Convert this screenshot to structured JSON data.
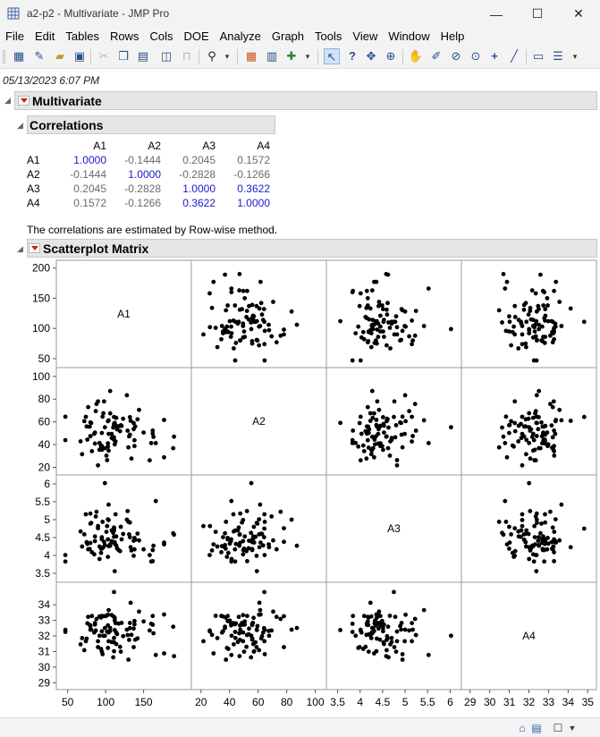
{
  "window": {
    "title": "a2-p2 - Multivariate - JMP Pro",
    "minimize_glyph": "—",
    "maximize_glyph": "☐",
    "close_glyph": "✕"
  },
  "menu": [
    "File",
    "Edit",
    "Tables",
    "Rows",
    "Cols",
    "DOE",
    "Analyze",
    "Graph",
    "Tools",
    "View",
    "Window",
    "Help"
  ],
  "toolbar_icons": [
    "new-data-table-icon",
    "new-script-icon",
    "open-icon",
    "save-icon",
    "cut-icon",
    "copy-icon",
    "paste-icon",
    "journal-icon",
    "lock-icon",
    "search-icon",
    "data-table-icon",
    "column-icon",
    "add-rows-icon",
    "arrow-tool-icon",
    "help-tool-icon",
    "selection-tool-icon",
    "crosshair-tool-icon",
    "grabber-tool-icon",
    "brush-tool-icon",
    "lasso-tool-icon",
    "magnifier-tool-icon",
    "crosshair-plus-icon",
    "line-tool-icon",
    "annotate-tool-icon",
    "more-tools-icon"
  ],
  "report": {
    "timestamp": "05/13/2023 6:07 PM",
    "multivariate_title": "Multivariate",
    "correlations_title": "Correlations",
    "columns": [
      "A1",
      "A2",
      "A3",
      "A4"
    ],
    "rows": [
      {
        "label": "A1",
        "values": [
          "1.0000",
          "-0.1444",
          "0.2045",
          "0.1572"
        ]
      },
      {
        "label": "A2",
        "values": [
          "-0.1444",
          "1.0000",
          "-0.2828",
          "-0.1266"
        ]
      },
      {
        "label": "A3",
        "values": [
          "0.2045",
          "-0.2828",
          "1.0000",
          "0.3622"
        ]
      },
      {
        "label": "A4",
        "values": [
          "0.1572",
          "-0.1266",
          "0.3622",
          "1.0000"
        ]
      }
    ],
    "correlation_note": "The correlations are estimated by Row-wise method.",
    "scatter_title": "Scatterplot Matrix"
  },
  "chart_data": {
    "type": "scatter",
    "variables": [
      "A1",
      "A2",
      "A3",
      "A4"
    ],
    "y_ticks": {
      "A1": [
        "50",
        "100",
        "150",
        "200"
      ],
      "A2": [
        "20",
        "40",
        "60",
        "80",
        "100"
      ],
      "A3": [
        "3.5",
        "4",
        "4.5",
        "5",
        "5.5",
        "6"
      ],
      "A4": [
        "29",
        "30",
        "31",
        "32",
        "33",
        "34"
      ]
    },
    "y_tick_values": {
      "A1": [
        50,
        100,
        150,
        200
      ],
      "A2": [
        20,
        40,
        60,
        80,
        100
      ],
      "A3": [
        3.5,
        4,
        4.5,
        5,
        5.5,
        6
      ],
      "A4": [
        29,
        30,
        31,
        32,
        33,
        34
      ]
    },
    "x_ticks": {
      "A1": [
        "50",
        "100",
        "150"
      ],
      "A2": [
        "20",
        "40",
        "60",
        "80",
        "100"
      ],
      "A3": [
        "3.5",
        "4",
        "4.5",
        "5",
        "5.5",
        "6"
      ],
      "A4": [
        "29",
        "30",
        "31",
        "32",
        "33",
        "34",
        "35"
      ]
    },
    "x_tick_values": {
      "A1": [
        50,
        100,
        150
      ],
      "A2": [
        20,
        40,
        60,
        80,
        100
      ],
      "A3": [
        3.5,
        4,
        4.5,
        5,
        5.5,
        6
      ],
      "A4": [
        29,
        30,
        31,
        32,
        33,
        34,
        35
      ]
    },
    "ranges": {
      "A1": [
        44,
        204
      ],
      "A2": [
        18,
        103
      ],
      "A3": [
        3.4,
        6.1
      ],
      "A4": [
        28.9,
        35.1
      ]
    },
    "observations": {
      "A1": [
        92,
        144,
        129,
        166,
        121,
        158,
        96,
        177,
        108,
        190,
        112,
        189,
        123,
        120,
        80,
        128,
        86,
        150,
        101,
        79,
        163,
        114,
        162,
        47,
        139,
        112,
        111,
        92,
        74,
        90,
        102,
        47,
        75,
        114,
        67,
        137,
        108,
        142,
        90,
        69,
        132,
        87,
        103,
        111,
        137,
        97,
        104,
        94,
        111,
        99,
        133,
        95,
        131,
        86,
        95,
        162,
        119,
        94,
        95,
        132,
        104,
        72,
        103,
        106,
        106,
        104,
        85,
        138,
        113,
        81,
        110,
        160,
        103,
        112,
        80,
        115,
        177,
        82,
        80,
        130,
        77,
        138,
        117,
        76,
        134,
        88,
        98,
        99,
        111,
        111
      ],
      "A2": [
        35.4,
        70.5,
        52.2,
        41.3,
        56.4,
        26.1,
        64.6,
        28.8,
        45.8,
        47.0,
        40.2,
        36.8,
        62.7,
        57.0,
        47.5,
        83.4,
        50.6,
        50.6,
        30.3,
        55.8,
        46.8,
        56.6,
        52.3,
        43.9,
        55.9,
        59.1,
        44.1,
        41.4,
        64.4,
        21.7,
        26.3,
        64.5,
        55.9,
        63.5,
        42.9,
        58.9,
        49.4,
        62.2,
        78.0,
        31.5,
        64.1,
        69.4,
        60.6,
        58.1,
        53.6,
        67.6,
        34.7,
        37.3,
        46.4,
        36.8,
        60.9,
        38.7,
        47.2,
        40.9,
        50.2,
        49.6,
        51.8,
        39.2,
        35.4,
        48.7,
        61.4,
        60.6,
        38.2,
        87.1,
        67.4,
        49.4,
        49.5,
        43.8,
        42.7,
        59.0,
        55.0,
        41.3,
        41.1,
        56.8,
        47.3,
        53.4,
        61.7,
        34.2,
        59.5,
        37.5,
        72.9,
        38.7,
        55.9,
        44.4,
        27.7,
        75.7,
        78.0,
        55.2,
        57.2,
        64.3
      ],
      "A3": [
        4.25,
        4.42,
        5.24,
        5.52,
        4.45,
        4.01,
        4.94,
        4.31,
        4.7,
        4.58,
        4.33,
        4.62,
        4.6,
        4.8,
        5.17,
        5.0,
        4.53,
        4.17,
        4.66,
        4.18,
        4.27,
        4.53,
        3.84,
        3.83,
        4.44,
        3.56,
        4.7,
        3.9,
        5.15,
        4.82,
        4.82,
        4.01,
        4.37,
        4.28,
        4.67,
        3.99,
        4.4,
        4.61,
        4.76,
        4.25,
        4.51,
        5.09,
        5.01,
        4.52,
        4.41,
        4.23,
        4.26,
        4.19,
        4.78,
        4.29,
        4.23,
        4.45,
        4.59,
        4.4,
        4.19,
        4.15,
        4.12,
        4.07,
        4.51,
        4.92,
        5.42,
        4.59,
        3.96,
        4.27,
        4.31,
        4.99,
        4.03,
        4.17,
        5.15,
        4.91,
        4.63,
        3.83,
        4.45,
        4.37,
        4.35,
        4.2,
        4.36,
        4.09,
        4.89,
        4.94,
        4.17,
        4.49,
        4.15,
        4.32,
        4.14,
        5.22,
        4.38,
        6.02,
        4.36,
        4.75
      ],
      "A4": [
        33.25,
        33.56,
        32.06,
        30.78,
        32.84,
        32.35,
        30.83,
        30.88,
        31.61,
        30.7,
        32.99,
        32.59,
        31.98,
        30.99,
        32.4,
        32.4,
        32.73,
        32.93,
        33.29,
        32.7,
        32.17,
        31.48,
        33.28,
        32.26,
        31.76,
        32.38,
        31.87,
        32.01,
        31.66,
        31.66,
        32.28,
        32.39,
        31.83,
        32.22,
        31.46,
        31.28,
        33.34,
        31.84,
        31.28,
        31.86,
        32.5,
        32.35,
        33.36,
        31.59,
        32.47,
        32.01,
        32.22,
        33.18,
        33.22,
        32.51,
        34.13,
        33.28,
        31.75,
        32.83,
        30.99,
        32.72,
        31.3,
        31.17,
        32.3,
        32.83,
        33.66,
        31.09,
        31.23,
        32.51,
        32.32,
        31.66,
        32.22,
        32.74,
        32.82,
        32.41,
        30.63,
        32.78,
        32.68,
        33.16,
        32.67,
        32.11,
        33.38,
        33.28,
        32.64,
        30.48,
        33.22,
        32.96,
        32.79,
        32.81,
        32.07,
        33.09,
        33.27,
        32.01,
        31.02,
        34.82
      ]
    }
  },
  "status_icons": [
    "home-icon",
    "report-icon",
    "window-icon",
    "dropdown-icon"
  ]
}
